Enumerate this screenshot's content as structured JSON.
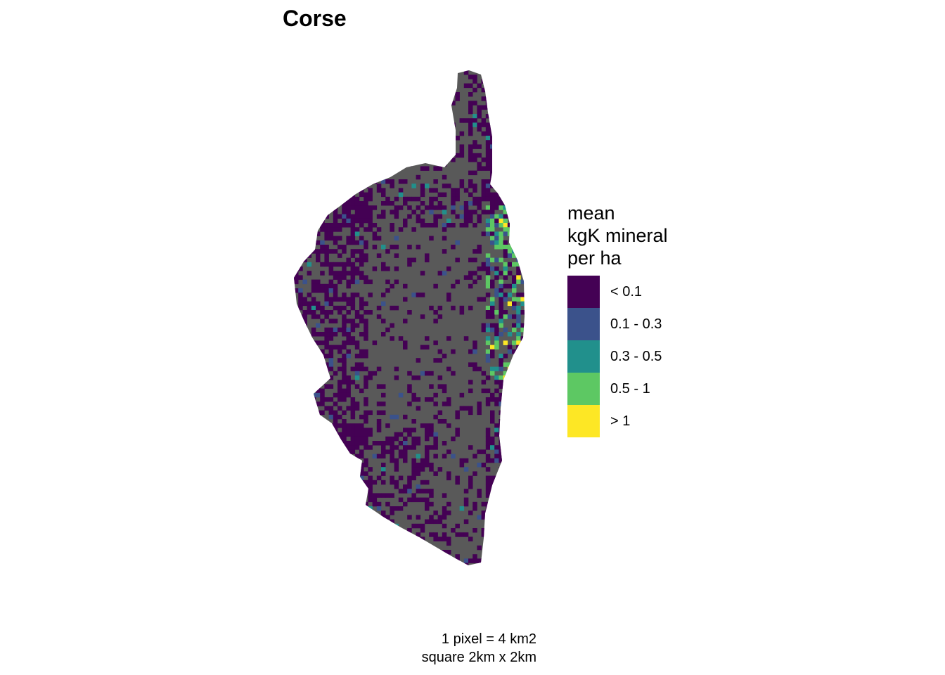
{
  "title": "Corse",
  "legend": {
    "title_lines": [
      "mean",
      "kgK mineral",
      "per ha"
    ],
    "keys": [
      {
        "label": "< 0.1",
        "color": "#440154"
      },
      {
        "label": "0.1 - 0.3",
        "color": "#3B528B"
      },
      {
        "label": "0.3 - 0.5",
        "color": "#21908C"
      },
      {
        "label": "0.5 - 1",
        "color": "#5DC863"
      },
      {
        "label": "> 1",
        "color": "#FDE725"
      }
    ]
  },
  "caption": {
    "line1": "1 pixel = 4 km2",
    "line2": "square 2km x 2km"
  },
  "colors": {
    "land": "#595959",
    "background": "#ffffff"
  }
}
